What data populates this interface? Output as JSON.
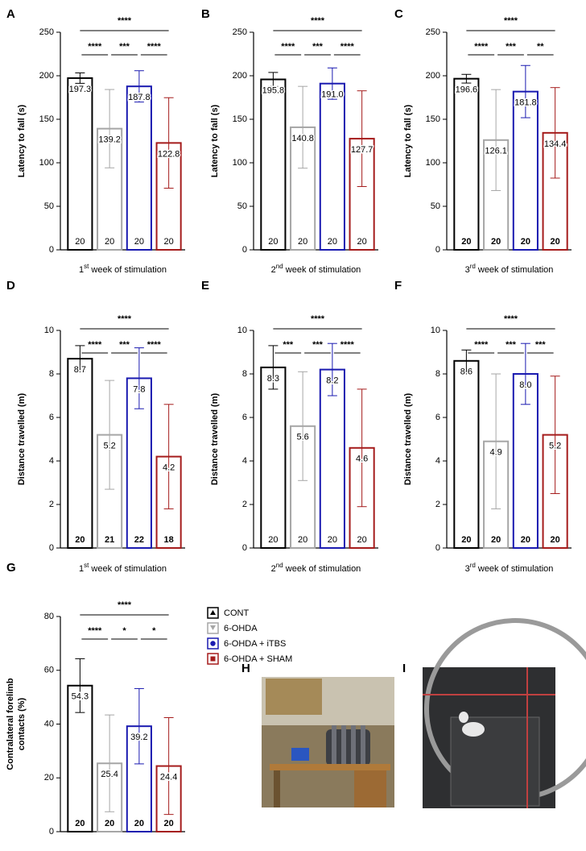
{
  "groups": [
    {
      "name": "CONT",
      "color": "#000000"
    },
    {
      "name": "6-OHDA",
      "color": "#a6a6a6"
    },
    {
      "name": "6-OHDA + iTBS",
      "color": "#1a1ab0"
    },
    {
      "name": "6-OHDA + SHAM",
      "color": "#a51c1c"
    }
  ],
  "chart_data": [
    {
      "type": "bar",
      "panel": "A",
      "ylabel": [
        "Latency to fall (s)"
      ],
      "xlabel": [
        "1",
        "st",
        " week of stimulation"
      ],
      "values": [
        197.3,
        139.2,
        187.8,
        122.8
      ],
      "errors": [
        6,
        45,
        18,
        52
      ],
      "n": [
        20,
        20,
        20,
        20
      ],
      "ylim": [
        0,
        250
      ],
      "yticks": [
        0,
        50,
        100,
        150,
        200,
        250
      ],
      "significance": {
        "overall": "****",
        "pairs": [
          "****",
          "***",
          "****"
        ]
      }
    },
    {
      "type": "bar",
      "panel": "B",
      "ylabel": [
        "Latency to fall (s)"
      ],
      "xlabel": [
        "2",
        "nd",
        " week of stimulation"
      ],
      "values": [
        195.8,
        140.8,
        191.0,
        127.7
      ],
      "value_labels": [
        "195.8",
        "140.8",
        "191.0",
        "127.7"
      ],
      "errors": [
        8,
        47,
        18,
        55
      ],
      "n": [
        20,
        20,
        20,
        20
      ],
      "ylim": [
        0,
        250
      ],
      "yticks": [
        0,
        50,
        100,
        150,
        200,
        250
      ],
      "significance": {
        "overall": "****",
        "pairs": [
          "****",
          "***",
          "****"
        ]
      }
    },
    {
      "type": "bar",
      "panel": "C",
      "ylabel": [
        "Latency to fall (s)"
      ],
      "xlabel": [
        "3",
        "rd",
        " week of stimulation"
      ],
      "values": [
        196.6,
        126.1,
        181.8,
        134.4
      ],
      "errors": [
        5,
        58,
        30,
        52
      ],
      "n": [
        20,
        20,
        20,
        20
      ],
      "ylim": [
        0,
        250
      ],
      "yticks": [
        0,
        50,
        100,
        150,
        200,
        250
      ],
      "significance": {
        "overall": "****",
        "pairs": [
          "****",
          "***",
          "**"
        ]
      }
    },
    {
      "type": "bar",
      "panel": "D",
      "ylabel": [
        "Distance travelled (m)"
      ],
      "xlabel": [
        "1",
        "st",
        " week of stimulation"
      ],
      "values": [
        8.7,
        5.2,
        7.8,
        4.2
      ],
      "errors": [
        0.6,
        2.5,
        1.4,
        2.4
      ],
      "n": [
        20,
        21,
        22,
        18
      ],
      "ylim": [
        0,
        10
      ],
      "yticks": [
        0,
        2,
        4,
        6,
        8,
        10
      ],
      "significance": {
        "overall": "****",
        "pairs": [
          "****",
          "***",
          "****"
        ]
      }
    },
    {
      "type": "bar",
      "panel": "E",
      "ylabel": [
        "Distance travelled (m)"
      ],
      "xlabel": [
        "2",
        "nd",
        " week of stimulation"
      ],
      "values": [
        8.3,
        5.6,
        8.2,
        4.6
      ],
      "errors": [
        1.0,
        2.5,
        1.2,
        2.7
      ],
      "n": [
        20,
        20,
        20,
        20
      ],
      "ylim": [
        0,
        10
      ],
      "yticks": [
        0,
        2,
        4,
        6,
        8,
        10
      ],
      "significance": {
        "overall": "****",
        "pairs": [
          "***",
          "***",
          "****"
        ]
      }
    },
    {
      "type": "bar",
      "panel": "F",
      "ylabel": [
        "Distance travelled (m)"
      ],
      "xlabel": [
        "3",
        "rd",
        " week of stimulation"
      ],
      "values": [
        8.6,
        4.9,
        8.0,
        5.2
      ],
      "value_labels": [
        "8.6",
        "4.9",
        "8.0",
        "5.2"
      ],
      "errors": [
        0.5,
        3.1,
        1.4,
        2.7
      ],
      "n": [
        20,
        20,
        20,
        20
      ],
      "ylim": [
        0,
        10
      ],
      "yticks": [
        0,
        2,
        4,
        6,
        8,
        10
      ],
      "significance": {
        "overall": "****",
        "pairs": [
          "****",
          "***",
          "***"
        ]
      }
    },
    {
      "type": "bar",
      "panel": "G",
      "ylabel": [
        "Contralateral forelimb",
        "contacts (%)"
      ],
      "values": [
        54.3,
        25.4,
        39.2,
        24.4
      ],
      "errors": [
        10,
        18,
        14,
        18
      ],
      "n": [
        20,
        20,
        20,
        20
      ],
      "ylim": [
        0,
        80
      ],
      "yticks": [
        0,
        20,
        40,
        60,
        80
      ],
      "significance": {
        "overall": "****",
        "pairs": [
          "****",
          "*",
          "*"
        ]
      }
    }
  ],
  "photos": [
    {
      "panel": "H"
    },
    {
      "panel": "I"
    }
  ]
}
